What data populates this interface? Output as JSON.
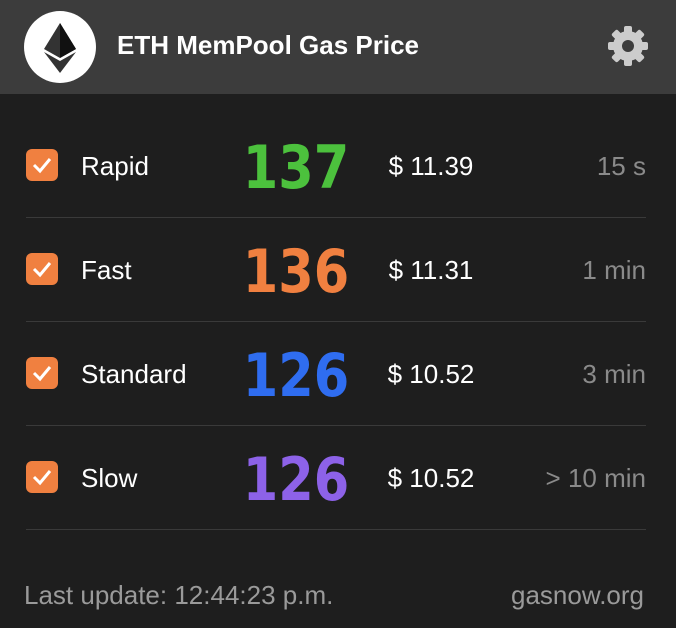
{
  "header": {
    "title": "ETH MemPool Gas Price"
  },
  "rows": [
    {
      "label": "Rapid",
      "gas": "137",
      "price": "$ 11.39",
      "time": "15 s",
      "color": "#4cc13d"
    },
    {
      "label": "Fast",
      "gas": "136",
      "price": "$ 11.31",
      "time": "1 min",
      "color": "#f08040"
    },
    {
      "label": "Standard",
      "gas": "126",
      "price": "$ 10.52",
      "time": "3 min",
      "color": "#2f6df0"
    },
    {
      "label": "Slow",
      "gas": "126",
      "price": "$ 10.52",
      "time": "> 10 min",
      "color": "#8d62e8"
    }
  ],
  "footer": {
    "updated": "Last update: 12:44:23 p.m.",
    "source": "gasnow.org"
  }
}
